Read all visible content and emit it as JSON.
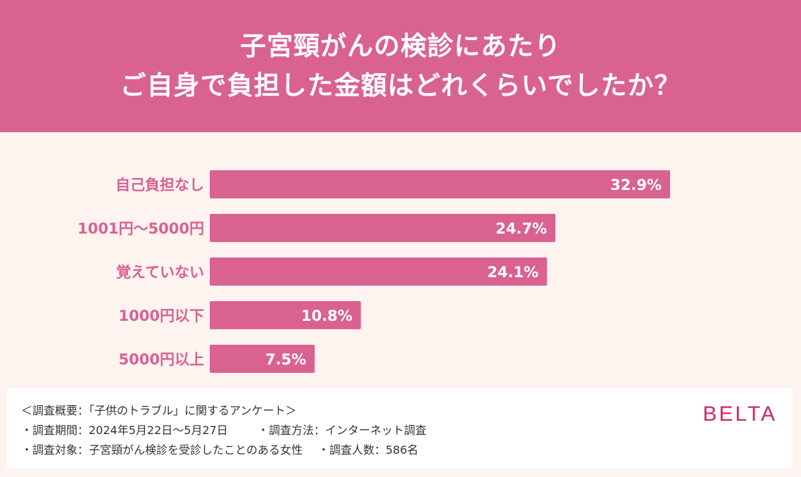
{
  "header": {
    "line1": "子宮頸がんの検診にあたり",
    "line2": "ご自身で負担した金額はどれくらいでしたか？"
  },
  "chart_data": {
    "type": "bar",
    "orientation": "horizontal",
    "categories": [
      "自己負担なし",
      "1001円〜5000円",
      "覚えていない",
      "1000円以下",
      "5000円以上"
    ],
    "values": [
      32.9,
      24.7,
      24.1,
      10.8,
      7.5
    ],
    "value_labels": [
      "32.9%",
      "24.7%",
      "24.1%",
      "10.8%",
      "7.5%"
    ],
    "xlim": [
      0,
      33
    ],
    "grid": false,
    "bar_color": "#d96291",
    "label_color": "#d96291"
  },
  "footer": {
    "summary": "＜調査概要：「子供のトラブル」に関するアンケート＞",
    "period": "・調査期間：2024年5月22日〜5月27日",
    "method": "・調査方法：インターネット調査",
    "target": "・調査対象：子宮頸がん検診を受診したことのある女性",
    "count": "・調査人数：586名",
    "brand": "BELTA"
  },
  "colors": {
    "header_bg": "#d96291",
    "page_bg": "#fdf3ef",
    "brand": "#d4246a"
  }
}
